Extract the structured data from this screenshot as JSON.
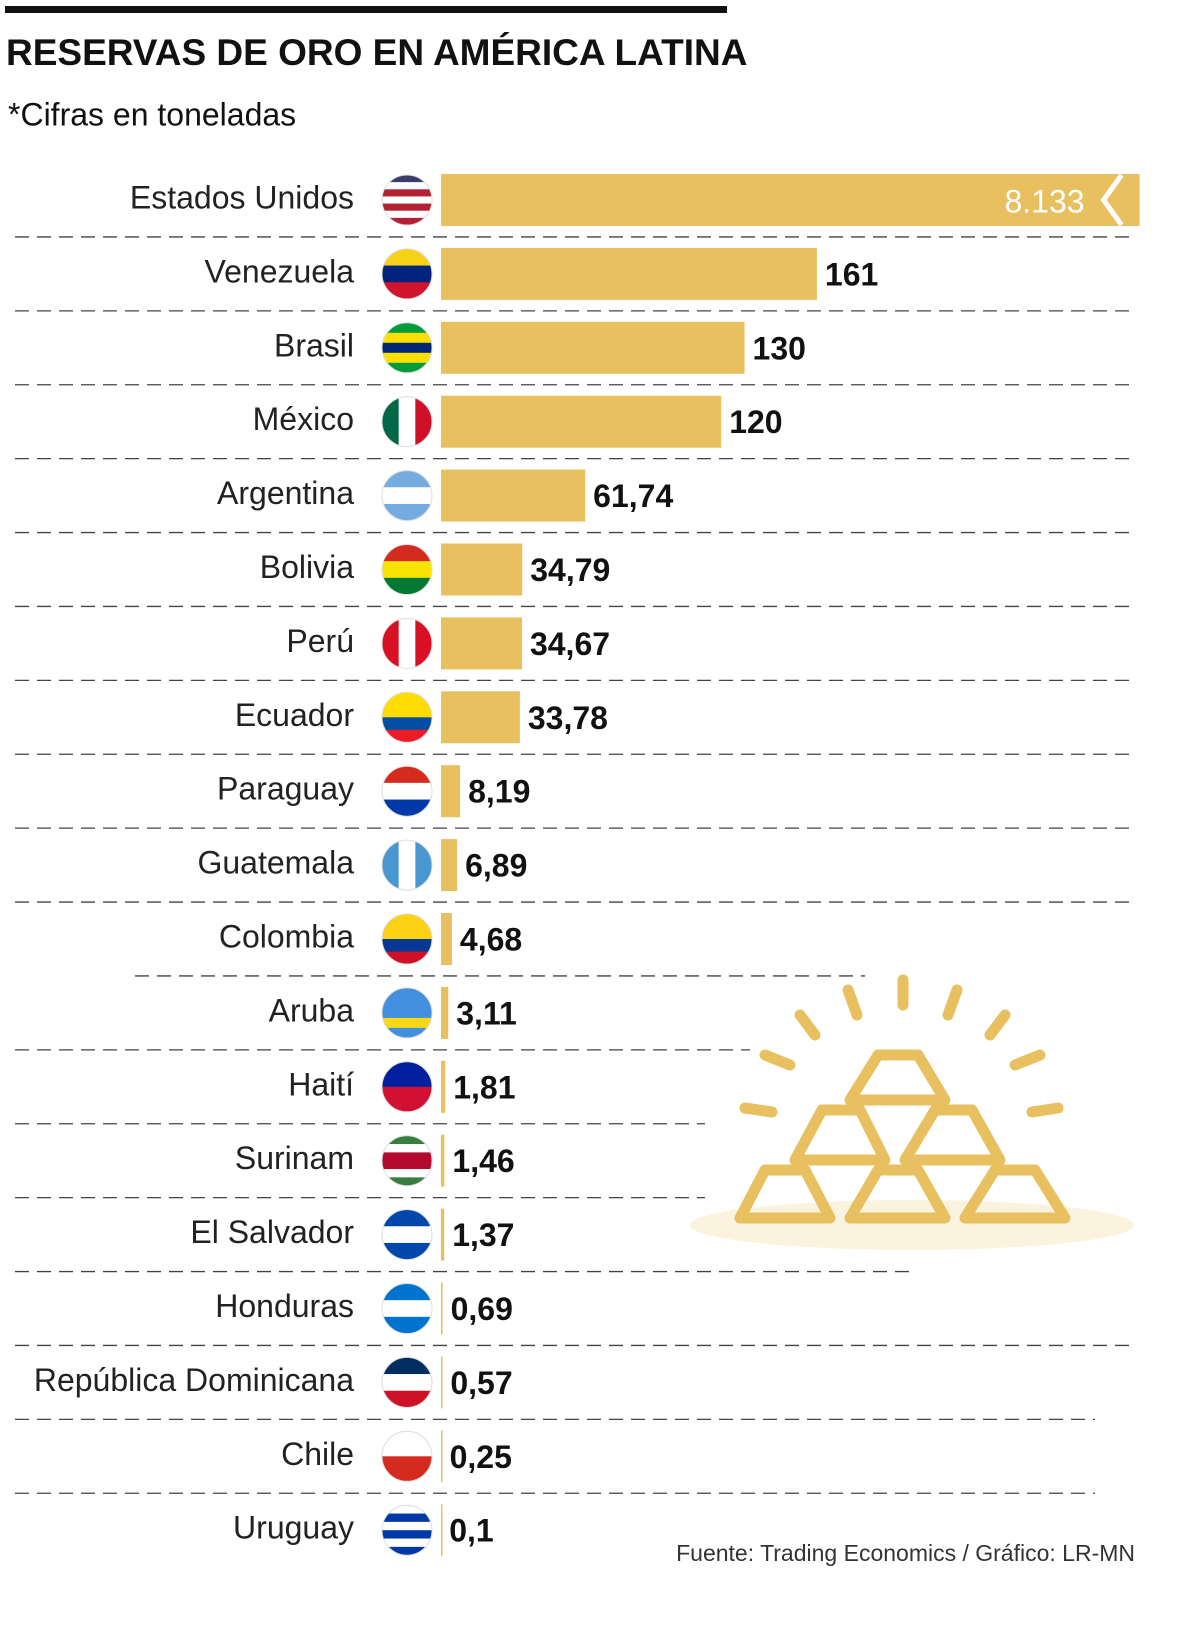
{
  "chart_data": {
    "type": "bar",
    "orientation": "horizontal",
    "title": "RESERVAS DE ORO EN AMÉRICA LATINA",
    "subtitle": "*Cifras en toneladas",
    "source": "Fuente: Trading Economics / Gráfico: LR-MN",
    "color": "#e8c060",
    "categories": [
      "Estados Unidos",
      "Venezuela",
      "Brasil",
      "México",
      "Argentina",
      "Bolivia",
      "Perú",
      "Ecuador",
      "Paraguay",
      "Guatemala",
      "Colombia",
      "Aruba",
      "Haití",
      "Surinam",
      "El Salvador",
      "Honduras",
      "República Dominicana",
      "Chile",
      "Uruguay"
    ],
    "values": [
      8133,
      161,
      130,
      120,
      61.74,
      34.79,
      34.67,
      33.78,
      8.19,
      6.89,
      4.68,
      3.11,
      1.81,
      1.46,
      1.37,
      0.69,
      0.57,
      0.25,
      0.1
    ],
    "value_labels": [
      "8.133",
      "161",
      "130",
      "120",
      "61,74",
      "34,79",
      "34,67",
      "33,78",
      "8,19",
      "6,89",
      "4,68",
      "3,11",
      "1,81",
      "1,46",
      "1,37",
      "0,69",
      "0,57",
      "0,25",
      "0,1"
    ]
  }
}
